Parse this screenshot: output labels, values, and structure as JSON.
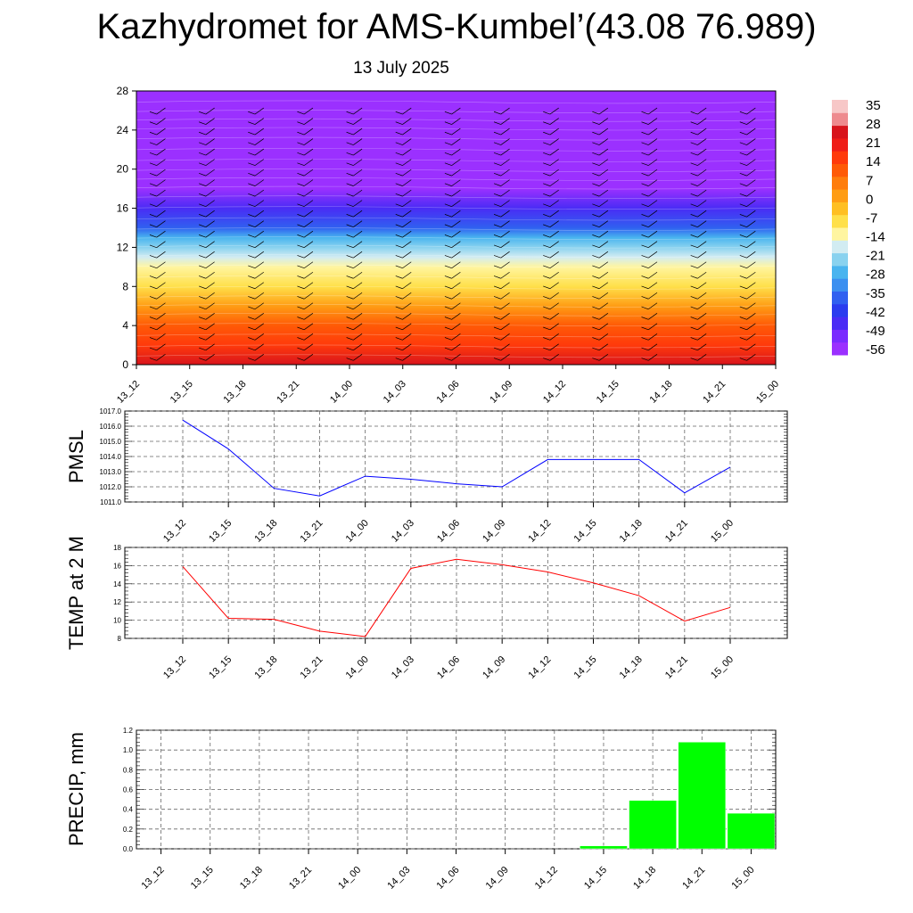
{
  "title": "Kazhydromet for AMS-Kumbel’(43.08 76.989)",
  "subtitle": "13 July 2025",
  "time_labels": [
    "13_12",
    "13_15",
    "13_18",
    "13_21",
    "14_00",
    "14_03",
    "14_06",
    "14_09",
    "14_12",
    "14_15",
    "14_18",
    "14_21",
    "15_00"
  ],
  "colors": {
    "pmsl_line": "#0000ff",
    "temp_line": "#ff0000",
    "precip_bar": "#00ff00",
    "colorbar": [
      "#9b30ff",
      "#7a2bff",
      "#4a2cf5",
      "#2b3cef",
      "#3060f0",
      "#3b8ff0",
      "#49b4ef",
      "#89d2ef",
      "#d2ecf2",
      "#fff5a0",
      "#ffe04a",
      "#ffbf22",
      "#ff9d14",
      "#ff7d0c",
      "#ff5a06",
      "#ff3a0b",
      "#ef1d18",
      "#d8141c",
      "#ee8a8e",
      "#f7c7c7"
    ]
  },
  "chart_data": [
    {
      "type": "heatmap",
      "panel": "cross-section",
      "x": [
        "13_12",
        "13_15",
        "13_18",
        "13_21",
        "14_00",
        "14_03",
        "14_06",
        "14_09",
        "14_12",
        "14_15",
        "14_18",
        "14_21",
        "15_00"
      ],
      "yticks": [
        0,
        4,
        8,
        12,
        16,
        20,
        24,
        28
      ],
      "ylim": [
        0,
        28
      ],
      "ylabel": "",
      "colorbar_labels": [
        "35",
        "28",
        "21",
        "14",
        "7",
        "0",
        "-7",
        "-14",
        "-21",
        "-28",
        "-35",
        "-42",
        "-49",
        "-56"
      ],
      "profile_height": [
        0,
        2,
        4,
        6,
        8,
        10,
        11,
        12,
        13,
        14,
        16,
        18,
        20,
        22,
        24,
        26,
        28
      ],
      "profile_temperature": [
        22,
        16,
        9,
        2,
        -7,
        -12,
        -17,
        -22,
        -28,
        -35,
        -44,
        -52,
        -58,
        -56,
        -56,
        -56,
        -56
      ]
    },
    {
      "type": "line",
      "ylabel": "PMSL",
      "x": [
        "13_12",
        "13_15",
        "13_18",
        "13_21",
        "14_00",
        "14_03",
        "14_06",
        "14_09",
        "14_12",
        "14_15",
        "14_18",
        "14_21",
        "15_00"
      ],
      "series": [
        {
          "values": [
            1016.4,
            1014.5,
            1011.9,
            1011.4,
            1012.7,
            1012.5,
            1012.2,
            1012.0,
            1013.8,
            1013.8,
            1013.8,
            1011.6,
            1013.3
          ]
        }
      ],
      "ylim": [
        1011.0,
        1017.0
      ],
      "yticks": [
        "1011.0",
        "1012.0",
        "1013.0",
        "1014.0",
        "1015.0",
        "1016.0",
        "1017.0"
      ]
    },
    {
      "type": "line",
      "ylabel": "TEMP at 2 M",
      "x": [
        "13_12",
        "13_15",
        "13_18",
        "13_21",
        "14_00",
        "14_03",
        "14_06",
        "14_09",
        "14_12",
        "14_15",
        "14_18",
        "14_21",
        "15_00"
      ],
      "series": [
        {
          "values": [
            15.9,
            10.2,
            10.1,
            8.8,
            8.2,
            15.7,
            16.7,
            16.1,
            15.3,
            14.1,
            12.7,
            9.9,
            11.4
          ]
        }
      ],
      "ylim": [
        8,
        18
      ],
      "yticks": [
        "8",
        "10",
        "12",
        "14",
        "16",
        "18"
      ]
    },
    {
      "type": "bar",
      "ylabel": "PRECIP, mm",
      "categories": [
        "13_12",
        "13_15",
        "13_18",
        "13_21",
        "14_00",
        "14_03",
        "14_06",
        "14_09",
        "14_12",
        "14_15",
        "14_18",
        "14_21",
        "15_00"
      ],
      "values": [
        0,
        0,
        0,
        0,
        0,
        0,
        0,
        0,
        0,
        0.03,
        0.49,
        1.08,
        0.36
      ],
      "ylim": [
        0,
        1.2
      ],
      "yticks": [
        "0.0",
        "0.2",
        "0.4",
        "0.6",
        "0.8",
        "1.0",
        "1.2"
      ]
    }
  ]
}
